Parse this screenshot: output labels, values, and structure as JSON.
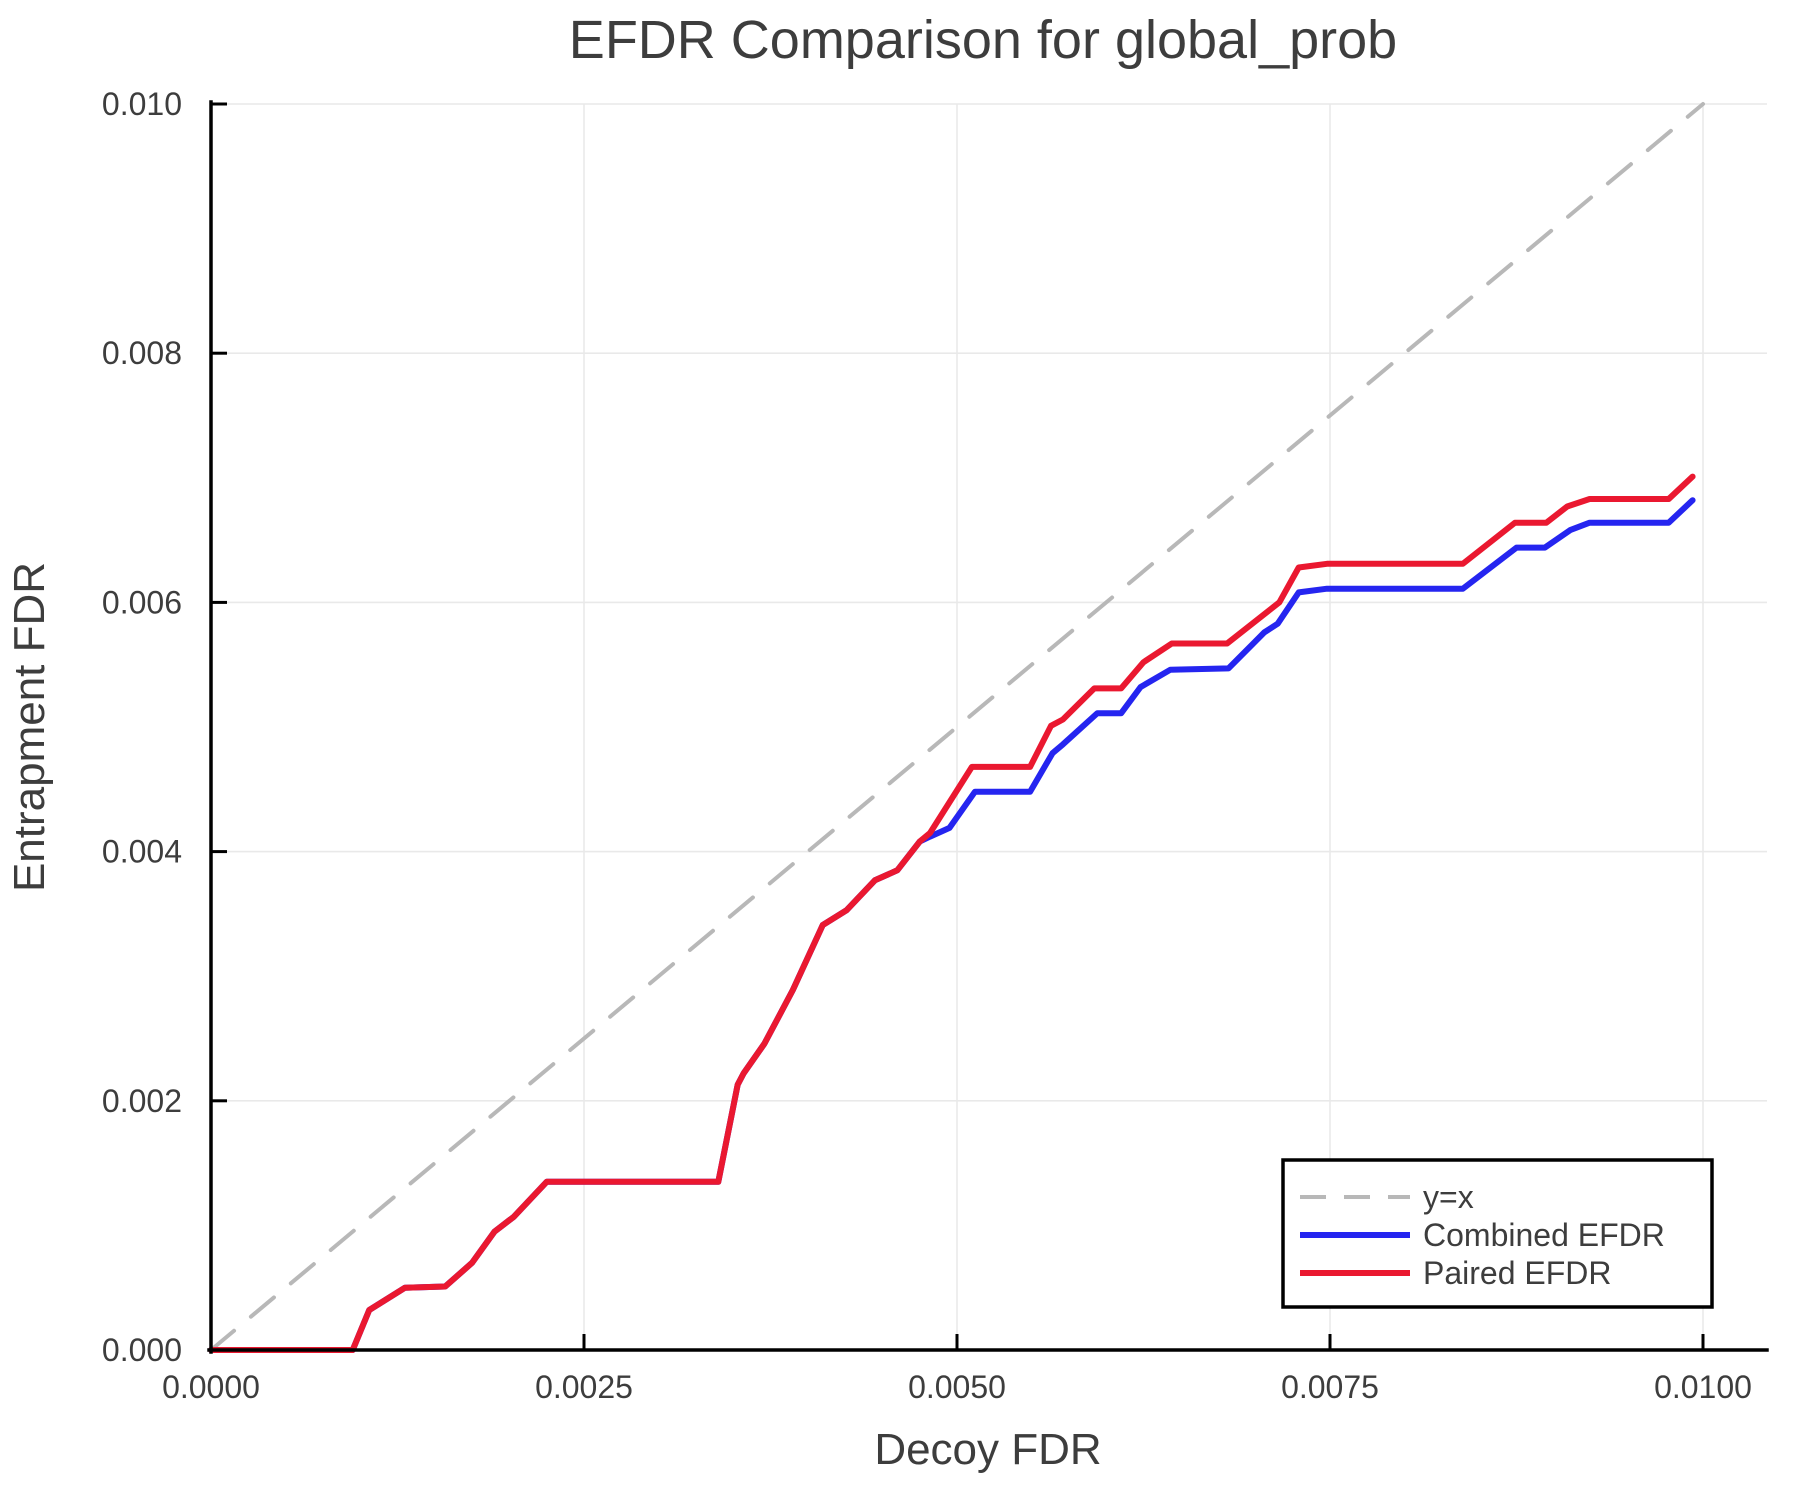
{
  "chart_data": {
    "type": "line",
    "title": "EFDR Comparison for global_prob",
    "xlabel": "Decoy FDR",
    "ylabel": "Entrapment FDR",
    "xlim": [
      0.0,
      0.01
    ],
    "ylim": [
      0.0,
      0.01
    ],
    "grid": true,
    "legend_position": "bottom-right",
    "x_ticks": {
      "values": [
        0.0,
        0.0025,
        0.005,
        0.0075,
        0.01
      ],
      "labels": [
        "0.0000",
        "0.0025",
        "0.0050",
        "0.0075",
        "0.0100"
      ]
    },
    "y_ticks": {
      "values": [
        0.0,
        0.002,
        0.004,
        0.006,
        0.008,
        0.01
      ],
      "labels": [
        "0.000",
        "0.002",
        "0.004",
        "0.006",
        "0.008",
        "0.010"
      ]
    },
    "series": [
      {
        "name": "y=x",
        "color": "#b8b8b8",
        "style": "dashed",
        "points": [
          [
            0.0,
            0.0
          ],
          [
            0.01,
            0.01
          ]
        ]
      },
      {
        "name": "Combined EFDR",
        "color": "#2525f0",
        "style": "solid",
        "points": [
          [
            0.0,
            0.0
          ],
          [
            0.00095,
            0.0
          ],
          [
            0.00106,
            0.00032
          ],
          [
            0.0013,
            0.0005
          ],
          [
            0.00157,
            0.00051
          ],
          [
            0.00175,
            0.0007
          ],
          [
            0.0019,
            0.00095
          ],
          [
            0.00203,
            0.00107
          ],
          [
            0.00225,
            0.00135
          ],
          [
            0.0034,
            0.00135
          ],
          [
            0.00353,
            0.00213
          ],
          [
            0.00357,
            0.00222
          ],
          [
            0.00371,
            0.00246
          ],
          [
            0.0039,
            0.00289
          ],
          [
            0.0041,
            0.00341
          ],
          [
            0.00426,
            0.00353
          ],
          [
            0.00445,
            0.00377
          ],
          [
            0.0046,
            0.00385
          ],
          [
            0.00475,
            0.00408
          ],
          [
            0.00482,
            0.00412
          ],
          [
            0.00495,
            0.00419
          ],
          [
            0.00512,
            0.00448
          ],
          [
            0.00549,
            0.00448
          ],
          [
            0.00564,
            0.00479
          ],
          [
            0.00571,
            0.00486
          ],
          [
            0.00594,
            0.00511
          ],
          [
            0.0061,
            0.00511
          ],
          [
            0.00623,
            0.00532
          ],
          [
            0.00643,
            0.00546
          ],
          [
            0.00682,
            0.00547
          ],
          [
            0.00706,
            0.00576
          ],
          [
            0.00715,
            0.00583
          ],
          [
            0.00729,
            0.00608
          ],
          [
            0.00748,
            0.00611
          ],
          [
            0.00839,
            0.00611
          ],
          [
            0.00875,
            0.00644
          ],
          [
            0.00894,
            0.00644
          ],
          [
            0.00911,
            0.00658
          ],
          [
            0.00924,
            0.00664
          ],
          [
            0.00977,
            0.00664
          ],
          [
            0.00993,
            0.00682
          ]
        ]
      },
      {
        "name": "Paired EFDR",
        "color": "#ea1830",
        "style": "solid",
        "points": [
          [
            0.0,
            0.0
          ],
          [
            0.00095,
            0.0
          ],
          [
            0.00106,
            0.00032
          ],
          [
            0.0013,
            0.0005
          ],
          [
            0.00157,
            0.00051
          ],
          [
            0.00175,
            0.0007
          ],
          [
            0.0019,
            0.00095
          ],
          [
            0.00203,
            0.00107
          ],
          [
            0.00225,
            0.00135
          ],
          [
            0.0034,
            0.00135
          ],
          [
            0.00353,
            0.00213
          ],
          [
            0.00357,
            0.00222
          ],
          [
            0.00371,
            0.00246
          ],
          [
            0.0039,
            0.00289
          ],
          [
            0.0041,
            0.00341
          ],
          [
            0.00426,
            0.00353
          ],
          [
            0.00445,
            0.00377
          ],
          [
            0.0046,
            0.00385
          ],
          [
            0.00475,
            0.00408
          ],
          [
            0.00482,
            0.00415
          ],
          [
            0.0051,
            0.00468
          ],
          [
            0.00549,
            0.00468
          ],
          [
            0.00563,
            0.00501
          ],
          [
            0.00571,
            0.00506
          ],
          [
            0.00592,
            0.00531
          ],
          [
            0.0061,
            0.00531
          ],
          [
            0.00625,
            0.00552
          ],
          [
            0.00644,
            0.00567
          ],
          [
            0.00681,
            0.00567
          ],
          [
            0.00716,
            0.006
          ],
          [
            0.00729,
            0.00628
          ],
          [
            0.00748,
            0.00631
          ],
          [
            0.00839,
            0.00631
          ],
          [
            0.00874,
            0.00664
          ],
          [
            0.00895,
            0.00664
          ],
          [
            0.00909,
            0.00677
          ],
          [
            0.00924,
            0.00683
          ],
          [
            0.00977,
            0.00683
          ],
          [
            0.00993,
            0.00701
          ]
        ]
      }
    ]
  }
}
